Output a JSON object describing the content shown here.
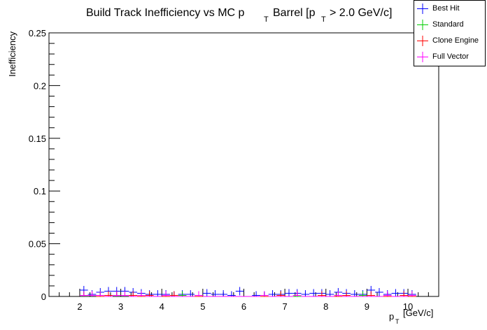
{
  "chart_data": {
    "type": "scatter",
    "title": "Build Track Inefficiency vs MC p",
    "title_sub": "T",
    "title_rest": "Barrel [p",
    "title_sub2": "T",
    "title_end": "> 2.0 GeV/c]",
    "xlabel": "p",
    "xlabel_sub": "T",
    "xlabel_unit": "[GeV/c]",
    "ylabel": "Inefficiency",
    "xlim": [
      1.25,
      10.75
    ],
    "ylim": [
      0,
      0.25
    ],
    "x_ticks": [
      "2",
      "3",
      "4",
      "5",
      "6",
      "7",
      "8",
      "9",
      "10"
    ],
    "y_ticks": [
      "0",
      "0.05",
      "0.1",
      "0.15",
      "0.2",
      "0.25"
    ],
    "bin_width": 0.2,
    "legend_position": "top-right",
    "series": [
      {
        "name": "Best Hit",
        "color": "#0000ff",
        "x": [
          2.1,
          2.3,
          2.5,
          2.7,
          2.9,
          3.1,
          3.3,
          3.5,
          3.7,
          3.9,
          4.1,
          4.3,
          4.5,
          4.7,
          4.9,
          5.1,
          5.3,
          5.5,
          5.7,
          5.9,
          6.1,
          6.3,
          6.5,
          6.7,
          6.9,
          7.1,
          7.3,
          7.5,
          7.7,
          7.9,
          8.1,
          8.3,
          8.5,
          8.7,
          8.9,
          9.1,
          9.3,
          9.5,
          9.7,
          9.9,
          10.1
        ],
        "y": [
          0.006,
          0.002,
          0.004,
          0.005,
          0.005,
          0.005,
          0.004,
          0.003,
          0.002,
          0.002,
          0.002,
          0.001,
          0.002,
          0.002,
          0.001,
          0.003,
          0.002,
          0.002,
          0.001,
          0.005,
          0.0,
          0.001,
          0.001,
          0.002,
          0.002,
          0.003,
          0.003,
          0.002,
          0.003,
          0.003,
          0.002,
          0.004,
          0.003,
          0.002,
          0.002,
          0.006,
          0.004,
          0.002,
          0.003,
          0.003,
          0.002
        ]
      },
      {
        "name": "Standard",
        "color": "#00cc00",
        "x": [
          2.1,
          2.5,
          2.9,
          3.3,
          3.7,
          4.1,
          4.5,
          4.9,
          5.3,
          5.7,
          6.1,
          6.5,
          6.9,
          7.3,
          7.7,
          8.1,
          8.5,
          8.9,
          9.3,
          9.7,
          10.1
        ],
        "y": [
          0.001,
          0.001,
          0.001,
          0.0,
          0.001,
          0.0,
          0.001,
          0.0,
          0.0,
          0.0,
          0.0,
          0.0,
          0.001,
          0.0,
          0.0,
          0.0,
          0.0,
          0.001,
          0.0,
          0.0,
          0.001
        ]
      },
      {
        "name": "Clone Engine",
        "color": "#ff0000",
        "x": [
          2.1,
          2.3,
          2.5,
          2.7,
          2.9,
          3.1,
          3.3,
          3.5,
          3.7,
          3.9,
          4.1,
          4.3,
          4.5,
          4.7,
          4.9,
          5.1,
          5.3,
          5.5,
          5.7,
          5.9,
          6.1,
          6.3,
          6.5,
          6.7,
          6.9,
          7.1,
          7.3,
          7.5,
          7.7,
          7.9,
          8.1,
          8.3,
          8.5,
          8.7,
          8.9,
          9.1,
          9.3,
          9.5,
          9.7,
          9.9,
          10.1
        ],
        "y": [
          0.001,
          0.001,
          0.0,
          0.001,
          0.001,
          0.001,
          0.001,
          0.0,
          0.001,
          0.0,
          0.0,
          0.001,
          0.0,
          0.0,
          0.0,
          0.0,
          0.0,
          0.0,
          0.0,
          0.0,
          0.0,
          0.0,
          0.0,
          0.0,
          0.001,
          0.0,
          0.001,
          0.0,
          0.0,
          0.001,
          0.0,
          0.0,
          0.001,
          0.0,
          0.0,
          0.001,
          0.0,
          0.0,
          0.0,
          0.001,
          0.0
        ]
      },
      {
        "name": "Full Vector",
        "color": "#ff00ff",
        "x": [
          2.1,
          2.3,
          2.5,
          2.7,
          2.9,
          3.1,
          3.3,
          3.5,
          3.7,
          3.9,
          4.1,
          4.3,
          4.5,
          4.7,
          4.9,
          5.1,
          5.3,
          5.5,
          5.7,
          5.9,
          6.1,
          6.3,
          6.5,
          6.7,
          6.9,
          7.1,
          7.3,
          7.5,
          7.7,
          7.9,
          8.1,
          8.3,
          8.5,
          8.7,
          8.9,
          9.1,
          9.3,
          9.5,
          9.7,
          9.9,
          10.1
        ],
        "y": [
          0.001,
          0.001,
          0.001,
          0.0,
          0.001,
          0.001,
          0.0,
          0.001,
          0.0,
          0.0,
          0.001,
          0.0,
          0.0,
          0.0,
          0.001,
          0.0,
          0.0,
          0.0,
          0.0,
          0.0,
          0.0,
          0.0,
          0.001,
          0.0,
          0.0,
          0.0,
          0.001,
          0.0,
          0.0,
          0.0,
          0.0,
          0.001,
          0.0,
          0.0,
          0.0,
          0.0,
          0.0,
          0.001,
          0.0,
          0.0,
          0.001
        ]
      }
    ]
  }
}
